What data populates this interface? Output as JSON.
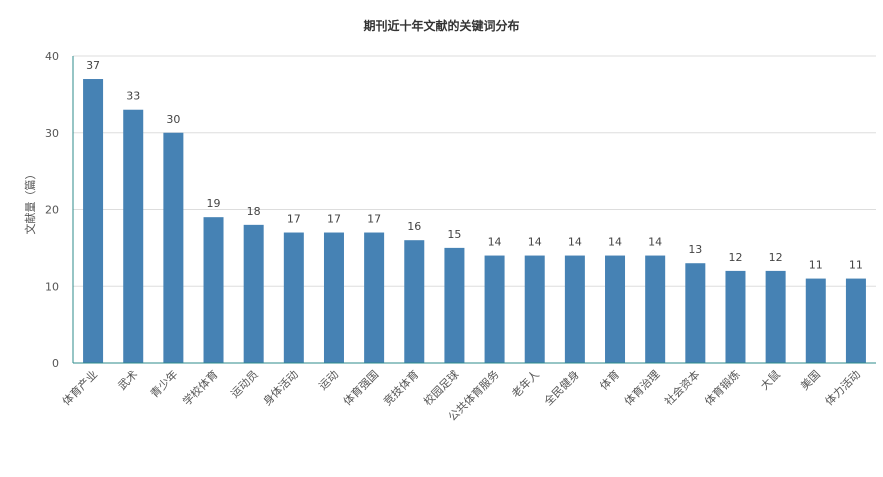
{
  "chart_data": {
    "type": "bar",
    "title": "期刊近十年文献的关键词分布",
    "xlabel": "",
    "ylabel": "文献量（篇）",
    "categories": [
      "体育产业",
      "武术",
      "青少年",
      "学校体育",
      "运动员",
      "身体活动",
      "运动",
      "体育强国",
      "竞技体育",
      "校园足球",
      "公共体育服务",
      "老年人",
      "全民健身",
      "体育",
      "体育治理",
      "社会资本",
      "体育锻炼",
      "大鼠",
      "美国",
      "体力活动"
    ],
    "values": [
      37,
      33,
      30,
      19,
      18,
      17,
      17,
      17,
      16,
      15,
      14,
      14,
      14,
      14,
      14,
      13,
      12,
      12,
      11,
      11
    ],
    "ylim": [
      0,
      40
    ],
    "yticks": [
      0,
      10,
      20,
      30,
      40
    ],
    "grid": true,
    "legend": "none",
    "colors": {
      "bar": "#4682b4",
      "axis": "#2e8b8b",
      "grid": "#dddddd"
    }
  }
}
